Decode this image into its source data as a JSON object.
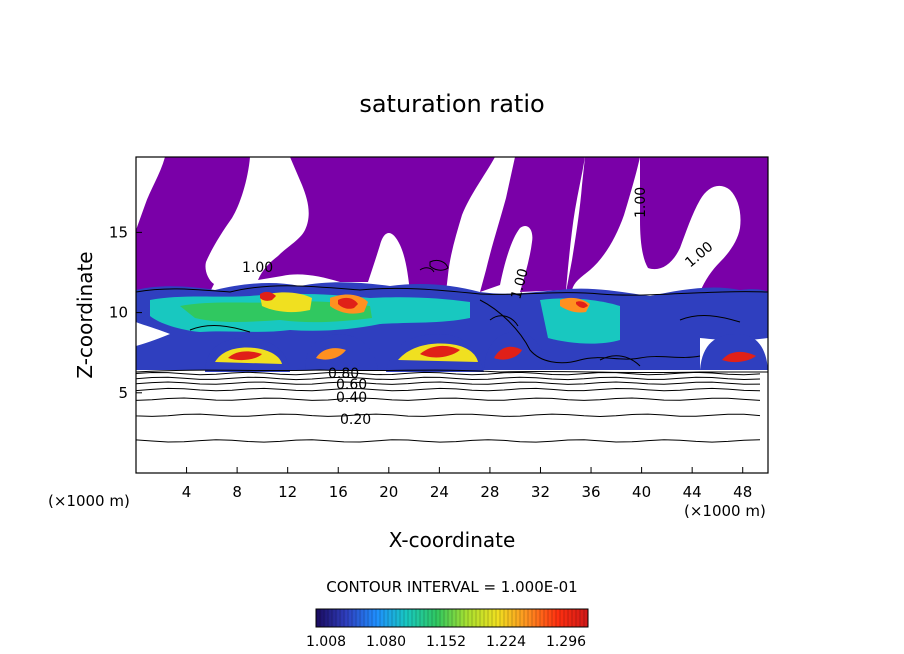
{
  "chart_data": {
    "type": "heatmap",
    "title": "saturation ratio",
    "xlabel": "X-coordinate",
    "ylabel": "Z-coordinate",
    "x_unit_label": "(×1000 m)",
    "z_unit_label": "(×1000 m)",
    "xlim": [
      0,
      50
    ],
    "ylim": [
      0,
      19.7
    ],
    "x_ticks": [
      4,
      8,
      12,
      16,
      20,
      24,
      28,
      32,
      36,
      40,
      44,
      48
    ],
    "y_ticks": [
      5,
      10,
      15
    ],
    "contour_interval_text": "CONTOUR INTERVAL = 1.000E-01",
    "contour_labels": [
      "0.20",
      "0.40",
      "0.60",
      "0.80",
      "1.00"
    ],
    "colorbar": {
      "ticks": [
        "1.008",
        "1.080",
        "1.152",
        "1.224",
        "1.296"
      ],
      "colors": [
        "#1a0a5e",
        "#2f3fbf",
        "#1f8fff",
        "#18c8c0",
        "#30c860",
        "#a8e030",
        "#f0e020",
        "#ff9020",
        "#ff3010",
        "#d01818"
      ]
    },
    "colors": {
      "supersat_region": "#7a00a8",
      "contour_line": "#000000"
    },
    "horizontal_contours_z": [
      2.0,
      3.6,
      4.6,
      5.2,
      5.6,
      5.9,
      6.2
    ]
  }
}
